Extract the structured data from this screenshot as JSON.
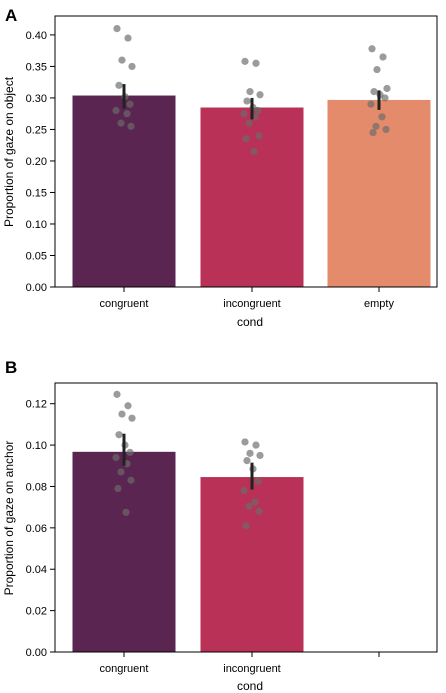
{
  "chart_data": [
    {
      "panel": "A",
      "type": "bar",
      "categories": [
        "congruent",
        "incongruent",
        "empty"
      ],
      "values": [
        0.303,
        0.284,
        0.296
      ],
      "error_bars": [
        [
          0.283,
          0.322
        ],
        [
          0.266,
          0.3
        ],
        [
          0.281,
          0.312
        ]
      ],
      "points": [
        [
          0.41,
          0.395,
          0.36,
          0.35,
          0.32,
          0.302,
          0.29,
          0.28,
          0.275,
          0.26,
          0.255
        ],
        [
          0.358,
          0.355,
          0.31,
          0.305,
          0.295,
          0.285,
          0.28,
          0.275,
          0.27,
          0.26,
          0.24,
          0.235,
          0.215
        ],
        [
          0.378,
          0.365,
          0.345,
          0.315,
          0.31,
          0.305,
          0.3,
          0.29,
          0.27,
          0.255,
          0.25,
          0.245
        ]
      ],
      "bar_colors": [
        "#5a2550",
        "#b93156",
        "#e38b6b"
      ],
      "point_color": "#6b6b6b",
      "xlabel": "cond",
      "ylabel": "Proportion of gaze on object",
      "ylim": [
        0,
        0.43
      ],
      "yticks": [
        0.0,
        0.05,
        0.1,
        0.15,
        0.2,
        0.25,
        0.3,
        0.35,
        0.4
      ],
      "ytick_labels": [
        "0.00",
        "0.05",
        "0.10",
        "0.15",
        "0.20",
        "0.25",
        "0.30",
        "0.35",
        "0.40"
      ],
      "grid": false
    },
    {
      "panel": "B",
      "type": "bar",
      "categories": [
        "congruent",
        "incongruent",
        ""
      ],
      "values": [
        0.0965,
        0.0843,
        null
      ],
      "error_bars": [
        [
          0.09,
          0.1055
        ],
        [
          0.0785,
          0.0915
        ],
        null
      ],
      "points": [
        [
          0.1245,
          0.119,
          0.115,
          0.113,
          0.105,
          0.1,
          0.0965,
          0.094,
          0.091,
          0.087,
          0.083,
          0.079,
          0.0675
        ],
        [
          0.1015,
          0.1,
          0.096,
          0.095,
          0.0925,
          0.0885,
          0.0825,
          0.078,
          0.0725,
          0.0705,
          0.068,
          0.061
        ],
        []
      ],
      "bar_colors": [
        "#5a2550",
        "#b93156",
        "#e38b6b"
      ],
      "point_color": "#6b6b6b",
      "xlabel": "cond",
      "ylabel": "Proportion of gaze on anchor",
      "ylim": [
        0,
        0.13
      ],
      "yticks": [
        0.0,
        0.02,
        0.04,
        0.06,
        0.08,
        0.1,
        0.12
      ],
      "ytick_labels": [
        "0.00",
        "0.02",
        "0.04",
        "0.06",
        "0.08",
        "0.10",
        "0.12"
      ],
      "grid": false
    }
  ]
}
